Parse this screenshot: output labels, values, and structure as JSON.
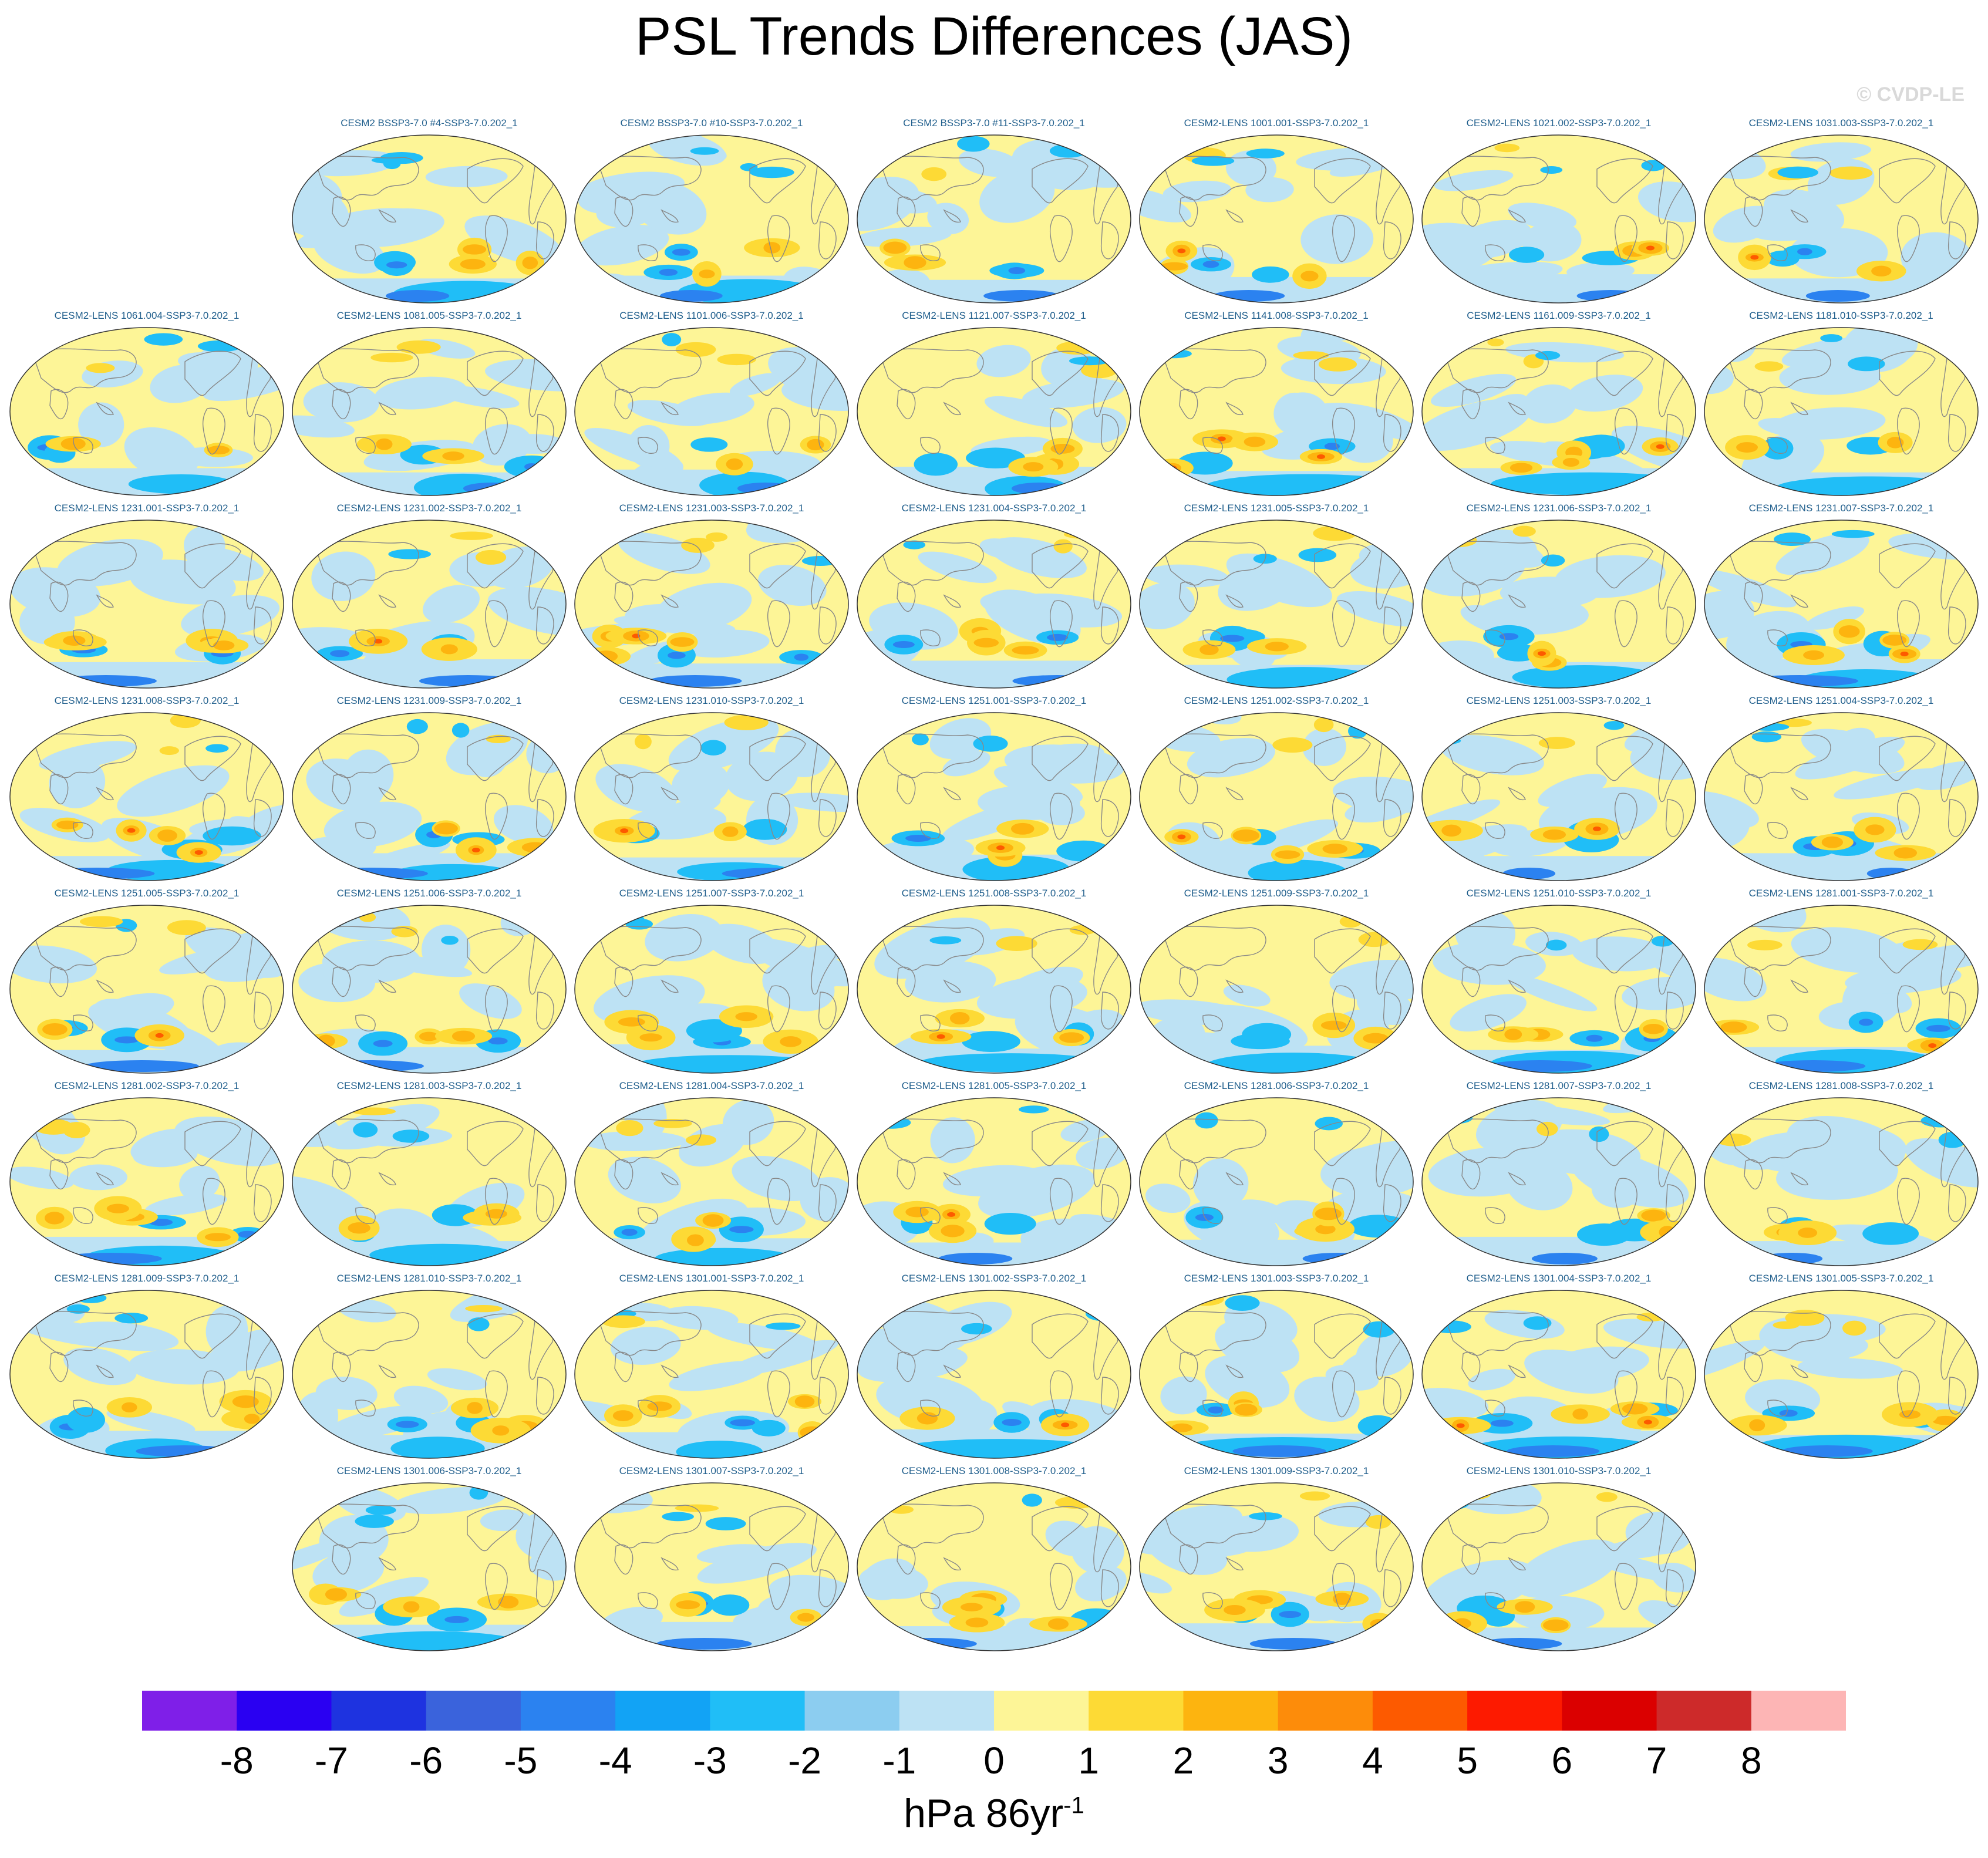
{
  "title": "PSL Trends Differences (JAS)",
  "credit": "© CVDP-LE",
  "rows": [
    {
      "start_col": 1,
      "panels": [
        "CESM2 BSSP3-7.0 #4-SSP3-7.0.202_1",
        "CESM2 BSSP3-7.0 #10-SSP3-7.0.202_1",
        "CESM2 BSSP3-7.0 #11-SSP3-7.0.202_1",
        "CESM2-LENS 1001.001-SSP3-7.0.202_1",
        "CESM2-LENS 1021.002-SSP3-7.0.202_1",
        "CESM2-LENS 1031.003-SSP3-7.0.202_1"
      ]
    },
    {
      "start_col": 0,
      "panels": [
        "CESM2-LENS 1061.004-SSP3-7.0.202_1",
        "CESM2-LENS 1081.005-SSP3-7.0.202_1",
        "CESM2-LENS 1101.006-SSP3-7.0.202_1",
        "CESM2-LENS 1121.007-SSP3-7.0.202_1",
        "CESM2-LENS 1141.008-SSP3-7.0.202_1",
        "CESM2-LENS 1161.009-SSP3-7.0.202_1",
        "CESM2-LENS 1181.010-SSP3-7.0.202_1"
      ]
    },
    {
      "start_col": 0,
      "panels": [
        "CESM2-LENS 1231.001-SSP3-7.0.202_1",
        "CESM2-LENS 1231.002-SSP3-7.0.202_1",
        "CESM2-LENS 1231.003-SSP3-7.0.202_1",
        "CESM2-LENS 1231.004-SSP3-7.0.202_1",
        "CESM2-LENS 1231.005-SSP3-7.0.202_1",
        "CESM2-LENS 1231.006-SSP3-7.0.202_1",
        "CESM2-LENS 1231.007-SSP3-7.0.202_1"
      ]
    },
    {
      "start_col": 0,
      "panels": [
        "CESM2-LENS 1231.008-SSP3-7.0.202_1",
        "CESM2-LENS 1231.009-SSP3-7.0.202_1",
        "CESM2-LENS 1231.010-SSP3-7.0.202_1",
        "CESM2-LENS 1251.001-SSP3-7.0.202_1",
        "CESM2-LENS 1251.002-SSP3-7.0.202_1",
        "CESM2-LENS 1251.003-SSP3-7.0.202_1",
        "CESM2-LENS 1251.004-SSP3-7.0.202_1"
      ]
    },
    {
      "start_col": 0,
      "panels": [
        "CESM2-LENS 1251.005-SSP3-7.0.202_1",
        "CESM2-LENS 1251.006-SSP3-7.0.202_1",
        "CESM2-LENS 1251.007-SSP3-7.0.202_1",
        "CESM2-LENS 1251.008-SSP3-7.0.202_1",
        "CESM2-LENS 1251.009-SSP3-7.0.202_1",
        "CESM2-LENS 1251.010-SSP3-7.0.202_1",
        "CESM2-LENS 1281.001-SSP3-7.0.202_1"
      ]
    },
    {
      "start_col": 0,
      "panels": [
        "CESM2-LENS 1281.002-SSP3-7.0.202_1",
        "CESM2-LENS 1281.003-SSP3-7.0.202_1",
        "CESM2-LENS 1281.004-SSP3-7.0.202_1",
        "CESM2-LENS 1281.005-SSP3-7.0.202_1",
        "CESM2-LENS 1281.006-SSP3-7.0.202_1",
        "CESM2-LENS 1281.007-SSP3-7.0.202_1",
        "CESM2-LENS 1281.008-SSP3-7.0.202_1"
      ]
    },
    {
      "start_col": 0,
      "panels": [
        "CESM2-LENS 1281.009-SSP3-7.0.202_1",
        "CESM2-LENS 1281.010-SSP3-7.0.202_1",
        "CESM2-LENS 1301.001-SSP3-7.0.202_1",
        "CESM2-LENS 1301.002-SSP3-7.0.202_1",
        "CESM2-LENS 1301.003-SSP3-7.0.202_1",
        "CESM2-LENS 1301.004-SSP3-7.0.202_1",
        "CESM2-LENS 1301.005-SSP3-7.0.202_1"
      ]
    },
    {
      "start_col": 1,
      "panels": [
        "CESM2-LENS 1301.006-SSP3-7.0.202_1",
        "CESM2-LENS 1301.007-SSP3-7.0.202_1",
        "CESM2-LENS 1301.008-SSP3-7.0.202_1",
        "CESM2-LENS 1301.009-SSP3-7.0.202_1",
        "CESM2-LENS 1301.010-SSP3-7.0.202_1"
      ]
    }
  ],
  "colorbar": {
    "colors": [
      "#7f1fe8",
      "#2a00f2",
      "#1e33e0",
      "#3a63dc",
      "#2b82f0",
      "#12a3f5",
      "#20bef7",
      "#8ccdf0",
      "#bde2f4",
      "#fdf597",
      "#fdda35",
      "#fdb40f",
      "#fd8c0a",
      "#fd5a00",
      "#fd1a00",
      "#db0000",
      "#cd2a2a",
      "#fdb5b5"
    ],
    "ticks": [
      "-8",
      "-7",
      "-6",
      "-5",
      "-4",
      "-3",
      "-2",
      "-1",
      "0",
      "1",
      "2",
      "3",
      "4",
      "5",
      "6",
      "7",
      "8"
    ]
  },
  "units": {
    "base": "hPa 86yr",
    "sup": "-1"
  },
  "palette": {
    "neg_strong": "#2b82f0",
    "neg_mid": "#20bef7",
    "neg_weak": "#bde2f4",
    "pos_weak": "#fdf597",
    "pos_mid": "#fdda35",
    "pos_strong": "#fdb40f",
    "pos_max": "#fd5a00",
    "coast": "#888888"
  }
}
